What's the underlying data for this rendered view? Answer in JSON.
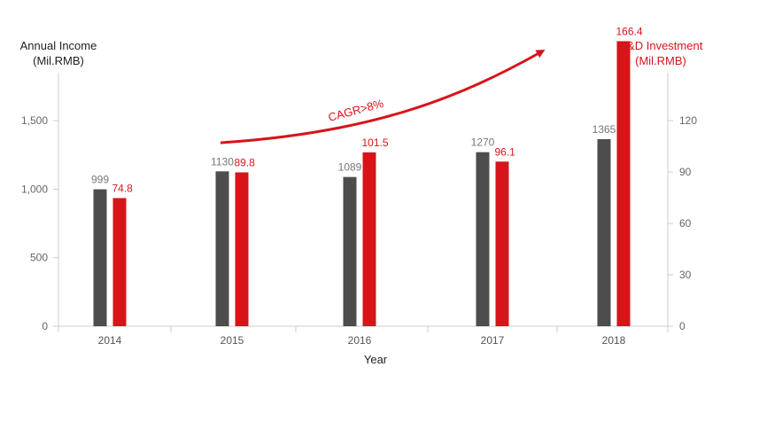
{
  "chart_data": {
    "type": "bar",
    "title": "",
    "xlabel": "Year",
    "categories": [
      "2014",
      "2015",
      "2016",
      "2017",
      "2018"
    ],
    "left_axis": {
      "label_line1": "Annual Income",
      "label_line2": "(Mil.RMB)",
      "ylim": [
        0,
        1850
      ],
      "ticks": [
        0,
        500,
        1000,
        1500
      ],
      "tick_labels": [
        "0",
        "500",
        "1,000",
        "1,500"
      ]
    },
    "right_axis": {
      "label_line1": "R&D Investment",
      "label_line2": "(Mil.RMB)",
      "ylim": [
        0,
        148
      ],
      "ticks": [
        0,
        30,
        60,
        90,
        120
      ],
      "tick_labels": [
        "0",
        "30",
        "60",
        "90",
        "120"
      ]
    },
    "series": [
      {
        "axis": "left",
        "color": "#4d4d4d",
        "values": [
          999,
          1130,
          1089,
          1270,
          1365
        ],
        "value_labels": [
          "999",
          "1130",
          "1089",
          "1270",
          "1365"
        ]
      },
      {
        "axis": "right",
        "color": "#d7141a",
        "values": [
          74.8,
          89.8,
          101.5,
          96.1,
          166.4
        ],
        "value_labels": [
          "74.8",
          "89.8",
          "101.5",
          "96.1",
          "166.4"
        ]
      }
    ],
    "annotation": {
      "text": "CAGR>8%",
      "color": "#d7141a"
    },
    "grid": false,
    "legend": "none"
  }
}
